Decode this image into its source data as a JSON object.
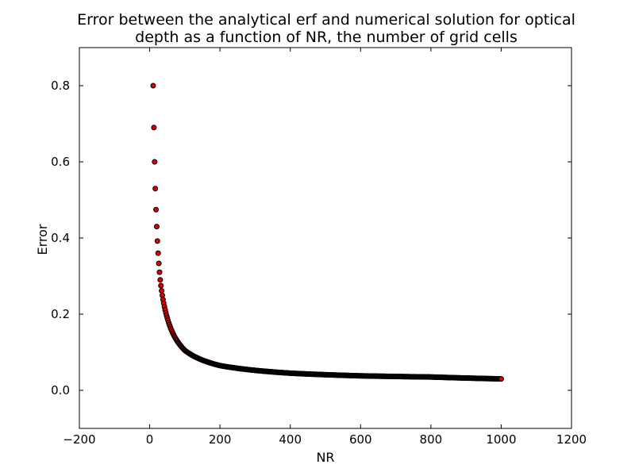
{
  "chart_data": {
    "type": "scatter",
    "title": "Error between the analytical erf and numerical solution for optical depth as a function of NR, the number of grid cells",
    "title_lines": [
      "Error between the analytical erf and numerical solution for optical",
      "depth as a function of NR, the number of grid cells"
    ],
    "xlabel": "NR",
    "ylabel": "Error",
    "xlim": [
      -200,
      1200
    ],
    "ylim": [
      -0.1,
      0.9
    ],
    "x_ticks": [
      -200,
      0,
      200,
      400,
      600,
      800,
      1000,
      1200
    ],
    "x_tick_labels": [
      "−200",
      "0",
      "200",
      "400",
      "600",
      "800",
      "1000",
      "1200"
    ],
    "y_ticks": [
      0.0,
      0.2,
      0.4,
      0.6,
      0.8
    ],
    "y_tick_labels": [
      "0.0",
      "0.2",
      "0.4",
      "0.6",
      "0.8"
    ],
    "grid": false,
    "legend": "none",
    "marker_face_color": "#dd0000",
    "marker_edge_color": "#000000",
    "series": [
      {
        "x_start": 10,
        "x_end": 1000,
        "x_step": 2,
        "model": "approx. 7.98 / NR + 0.028",
        "sample_points": [
          {
            "x": 10,
            "y": 0.8
          },
          {
            "x": 11,
            "y": 0.74
          },
          {
            "x": 12,
            "y": 0.69
          },
          {
            "x": 13,
            "y": 0.64
          },
          {
            "x": 14,
            "y": 0.6
          },
          {
            "x": 20,
            "y": 0.43
          },
          {
            "x": 30,
            "y": 0.29
          },
          {
            "x": 50,
            "y": 0.19
          },
          {
            "x": 100,
            "y": 0.105
          },
          {
            "x": 200,
            "y": 0.065
          },
          {
            "x": 400,
            "y": 0.045
          },
          {
            "x": 600,
            "y": 0.038
          },
          {
            "x": 800,
            "y": 0.035
          },
          {
            "x": 1000,
            "y": 0.03
          }
        ]
      }
    ]
  }
}
